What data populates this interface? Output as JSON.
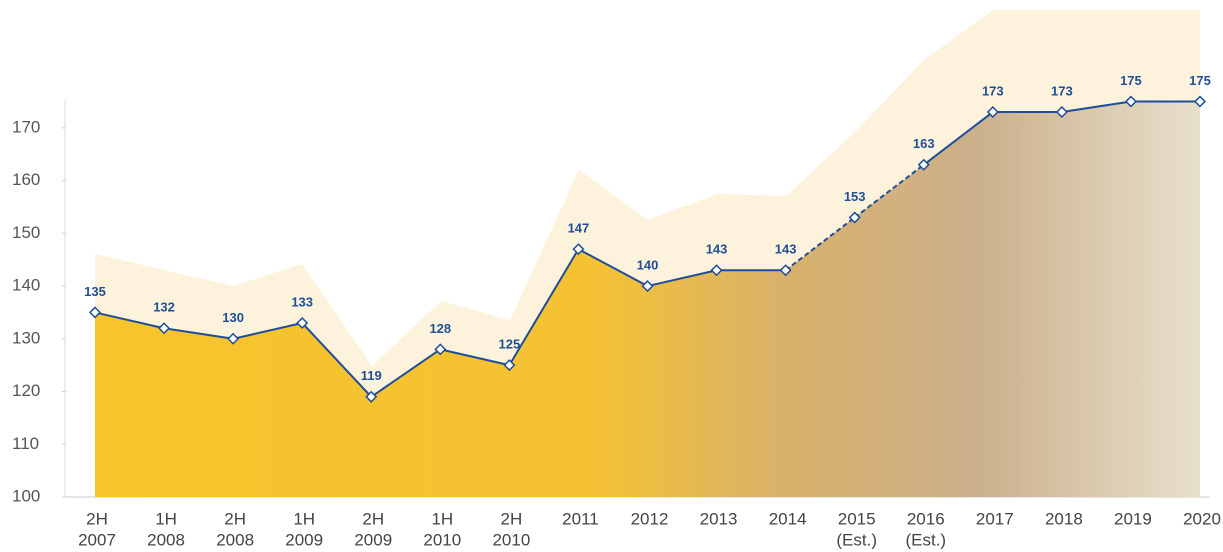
{
  "chart_data": {
    "type": "area",
    "categories": [
      [
        "2H",
        "2007"
      ],
      [
        "1H",
        "2008"
      ],
      [
        "2H",
        "2008"
      ],
      [
        "1H",
        "2009"
      ],
      [
        "2H",
        "2009"
      ],
      [
        "1H",
        "2010"
      ],
      [
        "2H",
        "2010"
      ],
      [
        "2011"
      ],
      [
        "2012"
      ],
      [
        "2013"
      ],
      [
        "2014"
      ],
      [
        "2015",
        "(Est.)"
      ],
      [
        "2016",
        "(Est.)"
      ],
      [
        "2017"
      ],
      [
        "2018"
      ],
      [
        "2019"
      ],
      [
        "2020"
      ]
    ],
    "values": [
      135,
      132,
      130,
      133,
      119,
      128,
      125,
      147,
      140,
      143,
      143,
      153,
      163,
      173,
      173,
      175,
      175
    ],
    "line_color": "#1f4e99",
    "area_color": "#f8c42c",
    "ylim": [
      100,
      175
    ],
    "yticks": [
      100,
      110,
      120,
      130,
      140,
      150,
      160,
      170
    ]
  }
}
